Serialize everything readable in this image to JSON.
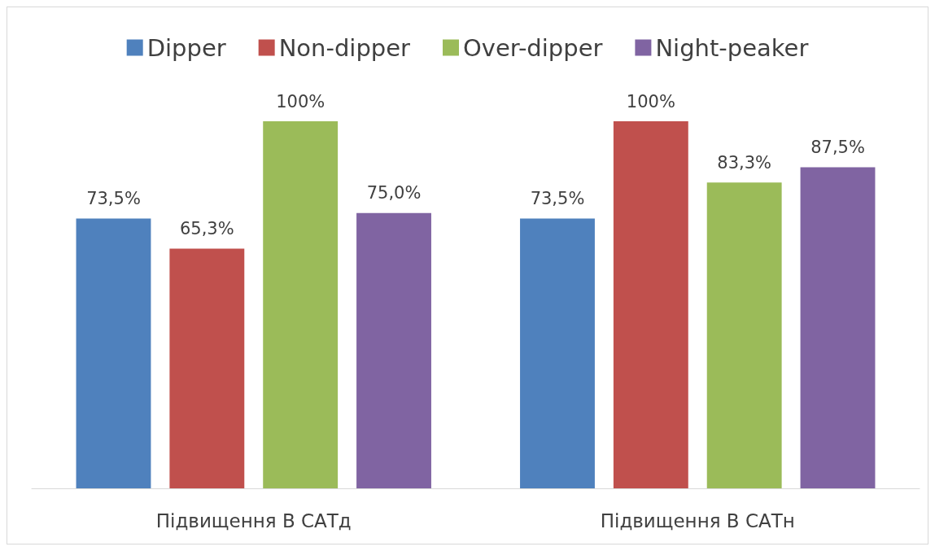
{
  "chart_data": {
    "type": "bar",
    "categories": [
      "Підвищення В САТд",
      "Підвищення В САТн"
    ],
    "series": [
      {
        "name": "Dipper",
        "color": "#4f81bd",
        "values": [
          73.5,
          73.5
        ],
        "value_labels": [
          "73,5%",
          "73,5%"
        ]
      },
      {
        "name": "Non-dipper",
        "color": "#c0504d",
        "values": [
          65.3,
          100
        ],
        "value_labels": [
          "65,3%",
          "100%"
        ]
      },
      {
        "name": "Over-dipper",
        "color": "#9bbb59",
        "values": [
          100,
          83.3
        ],
        "value_labels": [
          "100%",
          "83,3%"
        ]
      },
      {
        "name": "Night-peaker",
        "color": "#8064a2",
        "values": [
          75.0,
          87.5
        ],
        "value_labels": [
          "75,0%",
          "87,5%"
        ]
      }
    ],
    "legend": "top",
    "grid": false
  }
}
